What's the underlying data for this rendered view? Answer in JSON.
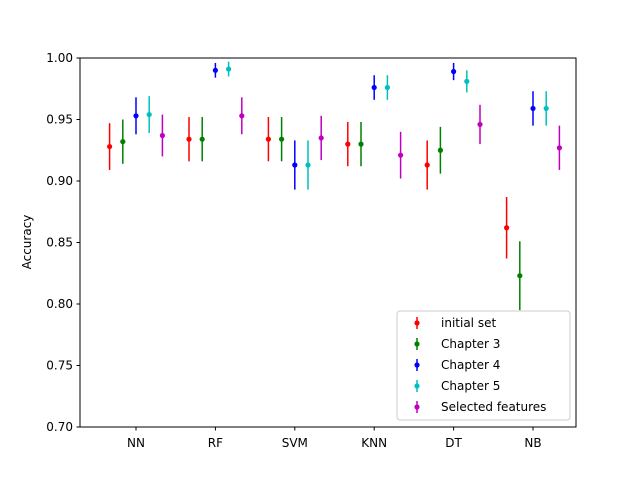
{
  "chart_data": {
    "type": "errorbar",
    "title": "",
    "xlabel": "",
    "ylabel": "Accuracy",
    "ylim": [
      0.7,
      1.0
    ],
    "yticks": [
      "0.70",
      "0.75",
      "0.80",
      "0.85",
      "0.90",
      "0.95",
      "1.00"
    ],
    "categories": [
      "NN",
      "RF",
      "SVM",
      "KNN",
      "DT",
      "NB"
    ],
    "legend_position": "lower-right",
    "grid": false,
    "series": [
      {
        "name": "initial set",
        "color": "#ff0000",
        "values": [
          0.928,
          0.934,
          0.934,
          0.93,
          0.913,
          0.862
        ],
        "errors": [
          0.019,
          0.018,
          0.018,
          0.018,
          0.02,
          0.025
        ]
      },
      {
        "name": "Chapter 3",
        "color": "#008000",
        "values": [
          0.932,
          0.934,
          0.934,
          0.93,
          0.925,
          0.823
        ],
        "errors": [
          0.018,
          0.018,
          0.018,
          0.018,
          0.019,
          0.028
        ]
      },
      {
        "name": "Chapter 4",
        "color": "#0000ff",
        "values": [
          0.953,
          0.99,
          0.913,
          0.976,
          0.989,
          0.959
        ],
        "errors": [
          0.015,
          0.006,
          0.02,
          0.01,
          0.007,
          0.014
        ]
      },
      {
        "name": "Chapter 5",
        "color": "#00bfbf",
        "values": [
          0.954,
          0.991,
          0.913,
          0.976,
          0.981,
          0.959
        ],
        "errors": [
          0.015,
          0.006,
          0.02,
          0.01,
          0.009,
          0.014
        ]
      },
      {
        "name": "Selected features",
        "color": "#bf00bf",
        "values": [
          0.937,
          0.953,
          0.935,
          0.921,
          0.946,
          0.927
        ],
        "errors": [
          0.017,
          0.015,
          0.018,
          0.019,
          0.016,
          0.018
        ]
      }
    ]
  }
}
